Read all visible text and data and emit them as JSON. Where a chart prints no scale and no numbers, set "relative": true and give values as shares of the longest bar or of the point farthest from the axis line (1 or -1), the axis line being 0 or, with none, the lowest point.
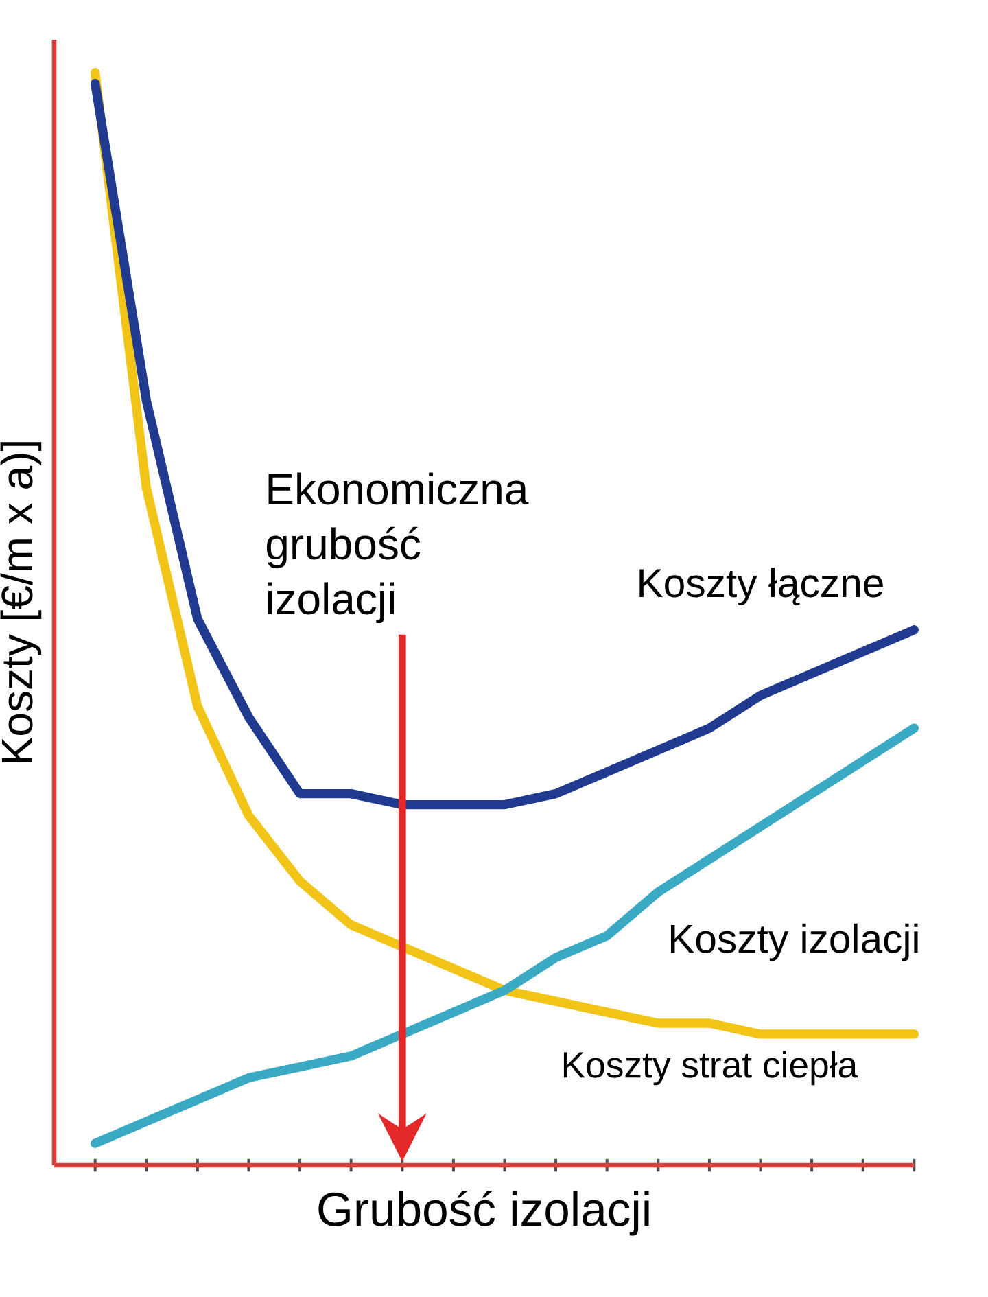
{
  "chart_data": {
    "type": "line",
    "relative": true,
    "marker": "none",
    "xlabel": "Grubość izolacji",
    "ylabel": "Koszty [€/m x a)]",
    "categories": [
      null,
      null,
      null,
      null,
      null,
      null,
      null,
      null,
      null,
      null,
      null,
      null,
      null,
      null,
      null,
      null,
      null
    ],
    "series": [
      {
        "name": "Koszty strat ciepła",
        "color": "#f2c418",
        "values": [
          1.0,
          0.62,
          0.42,
          0.32,
          0.26,
          0.22,
          0.2,
          0.18,
          0.16,
          0.15,
          0.14,
          0.13,
          0.13,
          0.12,
          0.12,
          0.12,
          0.12
        ]
      },
      {
        "name": "Koszty izolacji",
        "color": "#3aa9c4",
        "values": [
          0.02,
          0.04,
          0.06,
          0.08,
          0.09,
          0.1,
          0.12,
          0.14,
          0.16,
          0.19,
          0.21,
          0.25,
          0.28,
          0.31,
          0.34,
          0.37,
          0.4
        ]
      },
      {
        "name": "Koszty łączne",
        "color": "#1f3a8f",
        "values": [
          0.99,
          0.7,
          0.5,
          0.41,
          0.34,
          0.34,
          0.33,
          0.33,
          0.33,
          0.34,
          0.36,
          0.38,
          0.4,
          0.43,
          0.45,
          0.47,
          0.49
        ]
      }
    ],
    "annotations": [
      "Ekonomiczna grubość izolacji"
    ]
  }
}
